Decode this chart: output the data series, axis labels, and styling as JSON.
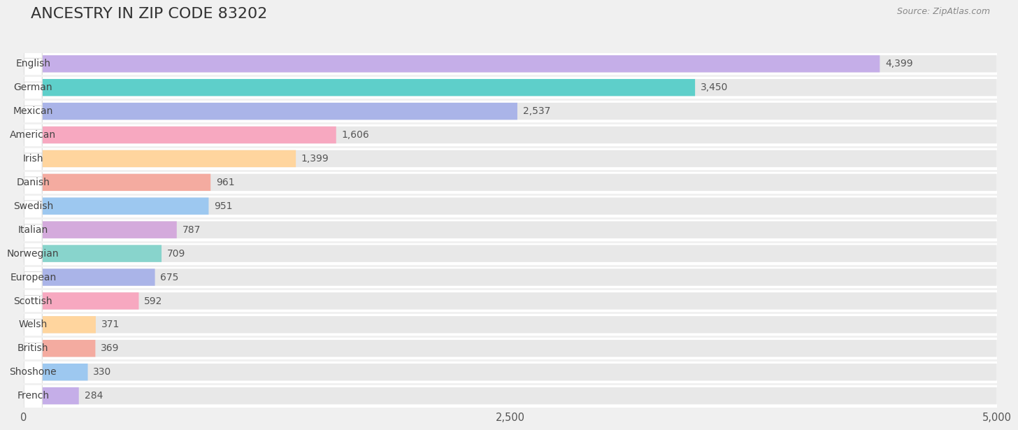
{
  "title": "ANCESTRY IN ZIP CODE 83202",
  "source": "Source: ZipAtlas.com",
  "categories": [
    "English",
    "German",
    "Mexican",
    "American",
    "Irish",
    "Danish",
    "Swedish",
    "Italian",
    "Norwegian",
    "European",
    "Scottish",
    "Welsh",
    "British",
    "Shoshone",
    "French"
  ],
  "values": [
    4399,
    3450,
    2537,
    1606,
    1399,
    961,
    951,
    787,
    709,
    675,
    592,
    371,
    369,
    330,
    284
  ],
  "bar_colors": [
    "#c5aee8",
    "#5ecfca",
    "#aab4e8",
    "#f7a8c0",
    "#ffd59e",
    "#f4aba0",
    "#9dc8f0",
    "#d4aadc",
    "#88d4cc",
    "#aab4e8",
    "#f7a8c0",
    "#ffd59e",
    "#f4aba0",
    "#9dc8f0",
    "#c5aee8"
  ],
  "xlim": [
    0,
    5000
  ],
  "xtick_labels": [
    "0",
    "2,500",
    "5,000"
  ],
  "background_color": "#f0f0f0",
  "row_bg_color": "#ffffff",
  "bar_bg_color": "#e8e8e8",
  "title_fontsize": 16,
  "source_fontsize": 9,
  "label_fontsize": 10,
  "value_fontsize": 10
}
